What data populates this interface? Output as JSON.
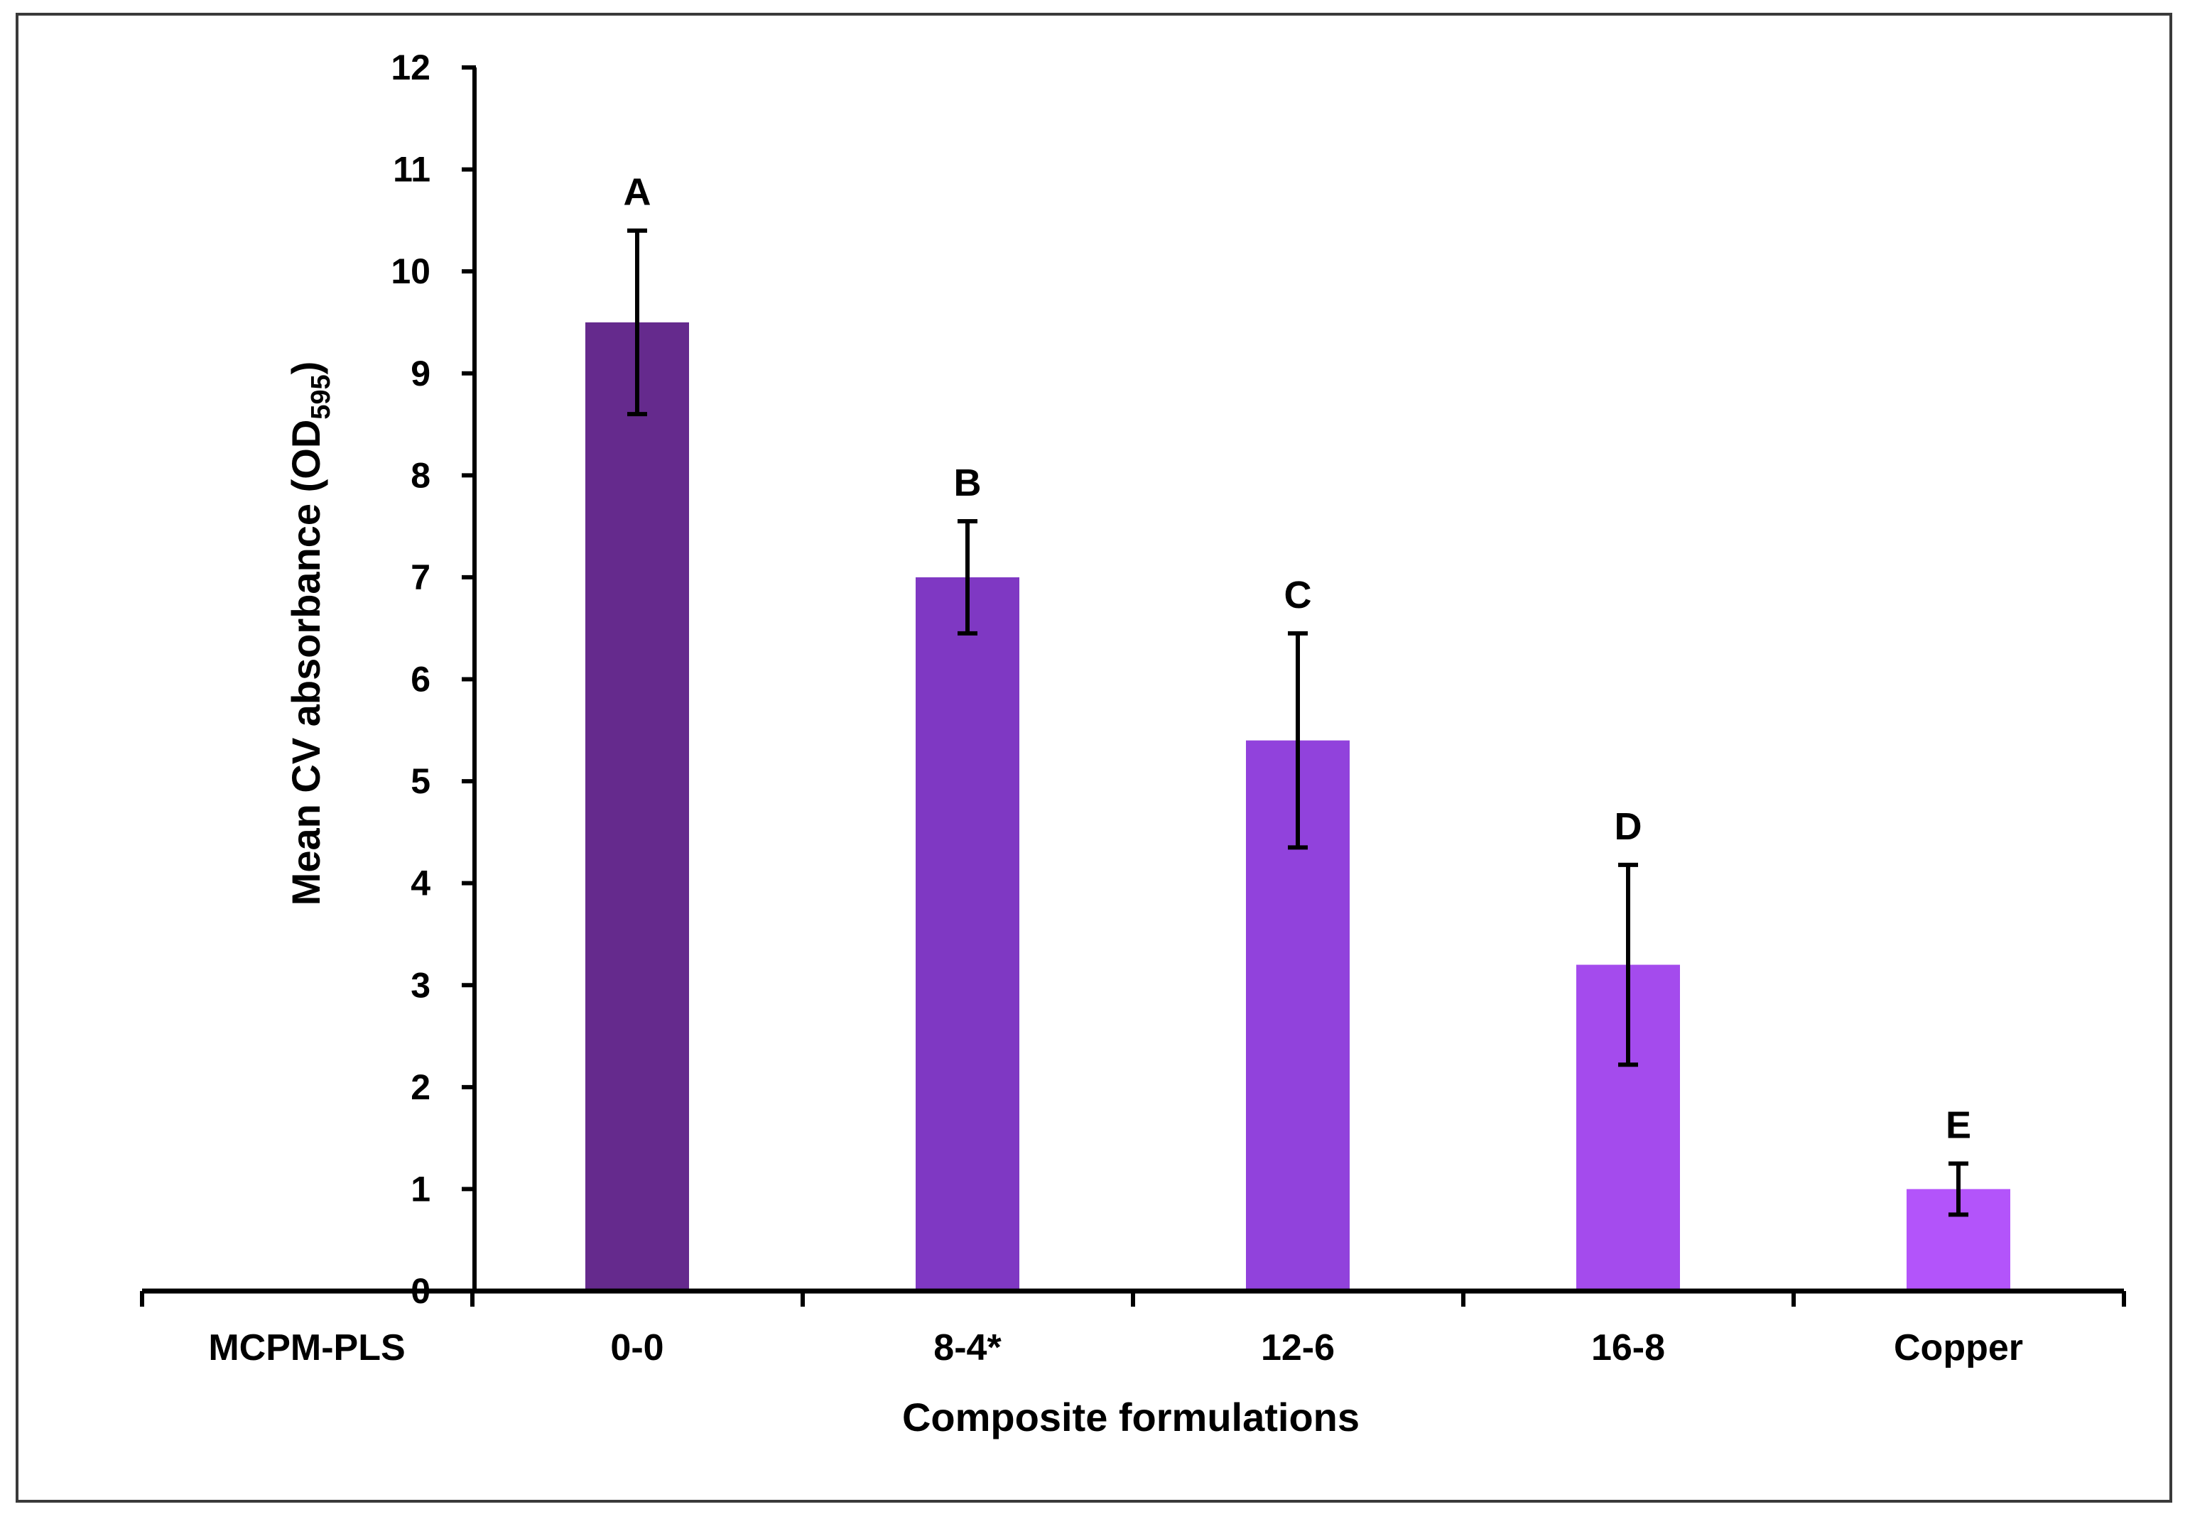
{
  "chart_data": {
    "type": "bar",
    "title": "",
    "xlabel": "Composite formulations",
    "ylabel": "Mean CV absorbance (OD",
    "ylabel_subscript": "595",
    "ylabel_close": ")",
    "ylim": [
      0,
      12
    ],
    "yticks": [
      "0",
      "1",
      "2",
      "3",
      "4",
      "5",
      "6",
      "7",
      "8",
      "9",
      "10",
      "11",
      "12"
    ],
    "categories": [
      "MCPM-PLS",
      "0-0",
      "8-4*",
      "12-6",
      "16-8",
      "Copper"
    ],
    "values": [
      0,
      9.5,
      7.0,
      5.4,
      3.2,
      1.0
    ],
    "error": [
      0,
      0.9,
      0.55,
      1.05,
      0.98,
      0.25
    ],
    "significance": [
      "",
      "A",
      "B",
      "C",
      "D",
      "E"
    ],
    "colors": [
      "#ffffff",
      "#652a8d",
      "#7f38c3",
      "#9142dc",
      "#a44bed",
      "#b354fa"
    ]
  }
}
